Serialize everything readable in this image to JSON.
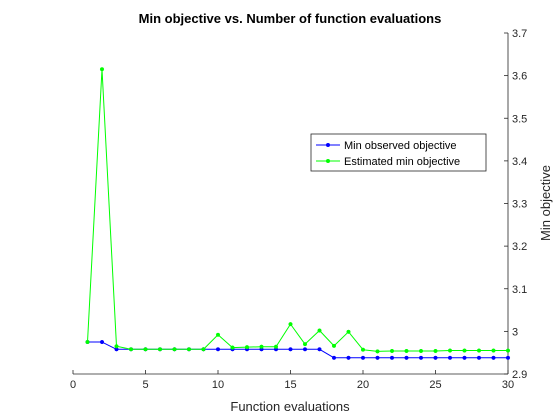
{
  "chart_data": {
    "type": "line",
    "title": "Min objective vs. Number of function evaluations",
    "xlabel": "Function evaluations",
    "ylabel": "Min objective",
    "xlim": [
      0,
      30
    ],
    "ylim": [
      2.9,
      3.7
    ],
    "xticks": [
      0,
      5,
      10,
      15,
      20,
      25,
      30
    ],
    "yticks": [
      2.9,
      3.0,
      3.1,
      3.2,
      3.3,
      3.4,
      3.5,
      3.6,
      3.7
    ],
    "ytick_labels": [
      "2.9",
      "3",
      "3.1",
      "3.2",
      "3.3",
      "3.4",
      "3.5",
      "3.6",
      "3.7"
    ],
    "y_axis_location": "right",
    "grid": false,
    "legend_location": "right",
    "x": [
      1,
      2,
      3,
      4,
      5,
      6,
      7,
      8,
      9,
      10,
      11,
      12,
      13,
      14,
      15,
      16,
      17,
      18,
      19,
      20,
      21,
      22,
      23,
      24,
      25,
      26,
      27,
      28,
      29,
      30
    ],
    "series": [
      {
        "name": "Min observed objective",
        "color": "#0000ff",
        "values": [
          2.975,
          2.975,
          2.958,
          2.958,
          2.958,
          2.958,
          2.958,
          2.958,
          2.958,
          2.958,
          2.958,
          2.958,
          2.958,
          2.958,
          2.958,
          2.958,
          2.958,
          2.938,
          2.938,
          2.938,
          2.938,
          2.938,
          2.938,
          2.938,
          2.938,
          2.938,
          2.938,
          2.938,
          2.938,
          2.938
        ]
      },
      {
        "name": "Estimated min objective",
        "color": "#00ff00",
        "values": [
          2.975,
          3.615,
          2.965,
          2.958,
          2.958,
          2.958,
          2.958,
          2.958,
          2.958,
          2.992,
          2.962,
          2.963,
          2.964,
          2.964,
          3.017,
          2.97,
          3.002,
          2.966,
          2.999,
          2.957,
          2.953,
          2.954,
          2.954,
          2.954,
          2.954,
          2.955,
          2.955,
          2.955,
          2.955,
          2.955
        ]
      }
    ]
  }
}
